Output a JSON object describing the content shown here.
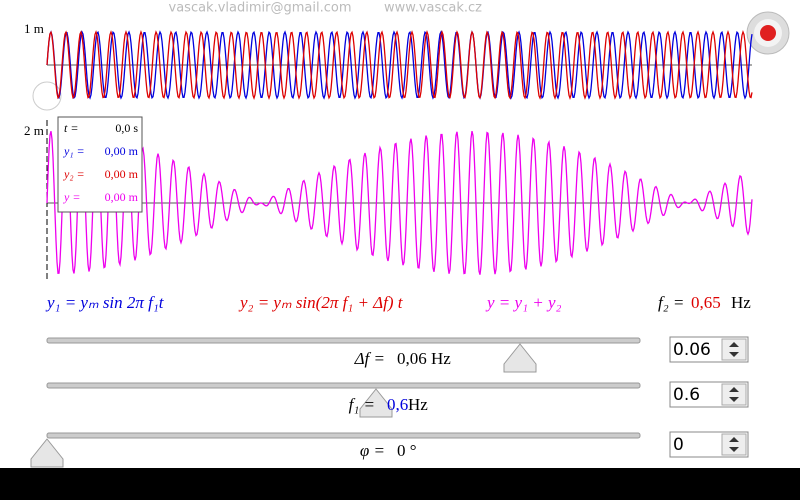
{
  "header": {
    "email": "vascak.vladimir@gmail.com",
    "website": "www.vascak.cz"
  },
  "plots": {
    "top_scale": "1 m",
    "bottom_scale": "2 m"
  },
  "readout": {
    "rows": [
      [
        "t =",
        "0,0 s"
      ],
      [
        "y₁ =",
        "0,00 m"
      ],
      [
        "y₂ =",
        "0,00 m"
      ],
      [
        "y =",
        "0,00 m"
      ]
    ]
  },
  "formulas": {
    "y1": "y₁ = yₘ sin 2π f₁t",
    "y2": "y₂ = yₘ sin(2π f₁ + Δf) t",
    "y": "y = y₁ + y₂",
    "f2_label": "f₂ =",
    "f2_value": "0,65",
    "f2_unit": "Hz"
  },
  "controls": [
    {
      "label": "Δf =",
      "value": "0,06 Hz",
      "input": "0.06"
    },
    {
      "label": "f₁ =",
      "value": "0,6",
      "unit": "Hz",
      "input": "0.6"
    },
    {
      "label": "φ =",
      "value": "0 °",
      "input": "0"
    }
  ]
}
